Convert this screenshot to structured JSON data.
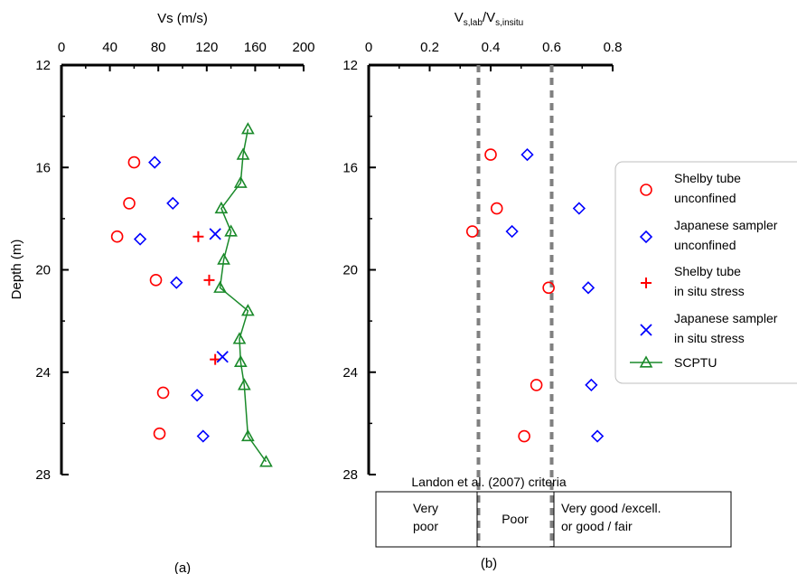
{
  "chart_data": [
    {
      "type": "scatter",
      "panel_label": "(a)",
      "xlabel": "Vs (m/s)",
      "ylabel": "Depth (m)",
      "xlim": [
        0,
        200
      ],
      "ylim": [
        12,
        28
      ],
      "y_inverted": true,
      "x_axis_position": "top",
      "x_ticks": [
        "0",
        "40",
        "80",
        "120",
        "160",
        "200"
      ],
      "y_ticks": [
        "12",
        "16",
        "20",
        "24",
        "28"
      ],
      "series": [
        {
          "name": "Shelby tube unconfined",
          "marker": "circle",
          "color": "#ff0000",
          "points": [
            [
              60,
              15.8
            ],
            [
              56,
              17.4
            ],
            [
              46,
              18.7
            ],
            [
              78,
              20.4
            ],
            [
              84,
              24.8
            ],
            [
              81,
              26.4
            ]
          ]
        },
        {
          "name": "Japanese sampler unconfined",
          "marker": "diamond",
          "color": "#0000ff",
          "points": [
            [
              77,
              15.8
            ],
            [
              92,
              17.4
            ],
            [
              65,
              18.8
            ],
            [
              95,
              20.5
            ],
            [
              112,
              24.9
            ],
            [
              117,
              26.5
            ]
          ]
        },
        {
          "name": "Shelby tube in situ stress",
          "marker": "plus",
          "color": "#ff0000",
          "points": [
            [
              113,
              18.7
            ],
            [
              122,
              20.4
            ],
            [
              127,
              23.5
            ]
          ]
        },
        {
          "name": "Japanese sampler in situ stress",
          "marker": "x",
          "color": "#0000ff",
          "points": [
            [
              127,
              18.6
            ],
            [
              133,
              23.4
            ]
          ]
        },
        {
          "name": "SCPTU",
          "marker": "triangle",
          "color": "#1a8a2a",
          "line": true,
          "points": [
            [
              154,
              14.5
            ],
            [
              150,
              15.5
            ],
            [
              148,
              16.6
            ],
            [
              132,
              17.6
            ],
            [
              140,
              18.5
            ],
            [
              134,
              19.6
            ],
            [
              131,
              20.7
            ],
            [
              154,
              21.6
            ],
            [
              147,
              22.7
            ],
            [
              148,
              23.6
            ],
            [
              151,
              24.5
            ],
            [
              154,
              26.5
            ],
            [
              169,
              27.5
            ]
          ]
        }
      ]
    },
    {
      "type": "scatter",
      "panel_label": "(b)",
      "xlabel_main": "V",
      "xlabel_sub1": "s,lab",
      "xlabel_slash": "/V",
      "xlabel_sub2": "s,insitu",
      "xlim": [
        0,
        0.8
      ],
      "ylim": [
        12,
        28
      ],
      "y_inverted": true,
      "x_axis_position": "top",
      "x_ticks": [
        "0",
        "0.2",
        "0.4",
        "0.6",
        "0.8"
      ],
      "y_ticks": [
        "12",
        "16",
        "20",
        "24",
        "28"
      ],
      "reference_lines": [
        0.36,
        0.6
      ],
      "criteria": {
        "title": "Landon et al. (2007) criteria",
        "cells": [
          [
            "Very",
            "poor"
          ],
          [
            "Poor"
          ],
          [
            "Very good /excell.",
            "or good / fair"
          ]
        ]
      },
      "series": [
        {
          "name": "Shelby tube unconfined",
          "marker": "circle",
          "color": "#ff0000",
          "points": [
            [
              0.4,
              15.5
            ],
            [
              0.42,
              17.6
            ],
            [
              0.34,
              18.5
            ],
            [
              0.59,
              20.7
            ],
            [
              0.55,
              24.5
            ],
            [
              0.51,
              26.5
            ]
          ]
        },
        {
          "name": "Japanese sampler unconfined",
          "marker": "diamond",
          "color": "#0000ff",
          "points": [
            [
              0.52,
              15.5
            ],
            [
              0.69,
              17.6
            ],
            [
              0.47,
              18.5
            ],
            [
              0.72,
              20.7
            ],
            [
              0.73,
              24.5
            ],
            [
              0.75,
              26.5
            ]
          ]
        }
      ]
    }
  ],
  "legend": {
    "placement": "right",
    "items": [
      {
        "marker": "circle",
        "color": "#ff0000",
        "line1": "Shelby tube",
        "line2": "unconfined"
      },
      {
        "marker": "diamond",
        "color": "#0000ff",
        "line1": "Japanese sampler",
        "line2": "unconfined"
      },
      {
        "marker": "plus",
        "color": "#ff0000",
        "line1": "Shelby tube",
        "line2": "in situ stress"
      },
      {
        "marker": "x",
        "color": "#0000ff",
        "line1": "Japanese sampler",
        "line2": "in situ stress"
      },
      {
        "marker": "triangle",
        "color": "#1a8a2a",
        "line1": "SCPTU",
        "line2": ""
      }
    ]
  },
  "colors": {
    "axis": "#000000",
    "reference_line": "#808080",
    "legend_border": "#bfbfbf"
  }
}
